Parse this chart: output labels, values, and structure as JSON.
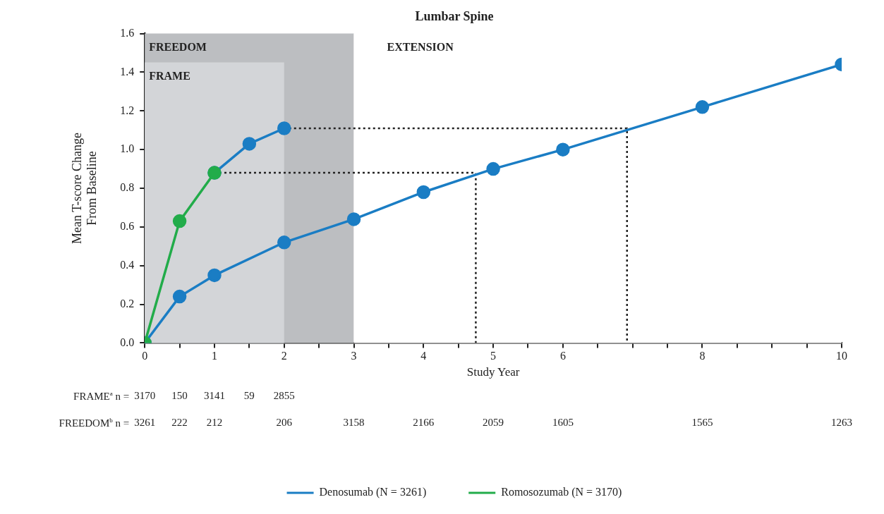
{
  "chart_data": {
    "type": "line",
    "title": "Lumbar Spine",
    "xlabel": "Study Year",
    "ylabel": "Mean T-score Change From Baseline",
    "xlim": [
      0,
      10
    ],
    "ylim": [
      0,
      1.6
    ],
    "xticks": [
      0,
      {
        "value": 0.5,
        "label": null
      },
      1,
      {
        "value": 1.5,
        "label": null
      },
      2,
      {
        "value": 2.5,
        "label": null
      },
      3,
      {
        "value": 3.5,
        "label": null
      },
      4,
      {
        "value": 4.5,
        "label": null
      },
      5,
      {
        "value": 5.5,
        "label": null
      },
      6,
      {
        "value": 6.5,
        "label": null
      },
      {
        "value": 7,
        "label": null
      },
      {
        "value": 7.5,
        "label": null
      },
      8,
      {
        "value": 8.5,
        "label": null
      },
      {
        "value": 9,
        "label": null
      },
      {
        "value": 9.5,
        "label": null
      },
      10
    ],
    "yticks": [
      {
        "value": 0,
        "label": "0.0"
      },
      {
        "value": 0.2,
        "label": "0.2"
      },
      {
        "value": 0.4,
        "label": "0.4"
      },
      {
        "value": 0.6,
        "label": "0.6"
      },
      {
        "value": 0.8,
        "label": "0.8"
      },
      {
        "value": 1,
        "label": "1.0"
      },
      {
        "value": 1.2,
        "label": "1.2"
      },
      {
        "value": 1.4,
        "label": "1.4"
      },
      {
        "value": 1.6,
        "label": "1.6"
      }
    ],
    "bands": [
      {
        "axis": "x",
        "from": 0,
        "to": 3,
        "label": "FREEDOM",
        "color": "#bcbec1"
      },
      {
        "axis": "x",
        "from": 0,
        "to": 2,
        "label": "FRAME",
        "color": "#d3d5d8"
      },
      {
        "axis": "x",
        "from": 3,
        "to": 10,
        "label": "EXTENSION",
        "color": "#ffffff"
      }
    ],
    "series": [
      {
        "x": [
          1,
          4.75,
          4.75
        ],
        "values": [
          0.88,
          0.88,
          0
        ],
        "color": "#222222",
        "line_style": "dotted",
        "marker": "none"
      },
      {
        "x": [
          2,
          6.92,
          6.92
        ],
        "values": [
          1.11,
          1.11,
          0
        ],
        "color": "#222222",
        "line_style": "dotted",
        "marker": "none"
      },
      {
        "name": "Denosumab (N = 3261)",
        "color": "#1a7dc4",
        "x": [
          0,
          0.5,
          1,
          2,
          3,
          4,
          5,
          6,
          8,
          10
        ],
        "values": [
          0,
          0.24,
          0.35,
          0.52,
          0.64,
          0.78,
          0.9,
          1,
          1.22,
          1.44
        ]
      },
      {
        "color": "#1a7dc4",
        "x": [
          1,
          1.5,
          2
        ],
        "values": [
          0.88,
          1.03,
          1.11
        ]
      },
      {
        "name": "Romosozumab (N = 3170)",
        "color": "#22ac4a",
        "x": [
          0,
          0.5,
          1
        ],
        "values": [
          0,
          0.63,
          0.88
        ]
      }
    ],
    "marker": "circle",
    "line_style": "solid",
    "grid": false,
    "legend": "bottom",
    "annotations": [
      "FRAME$^{a}$ n = 3170 150 3141 59 2855",
      "FREEDOM$^{b}$ n = 3261 222 212 206 3158 2166 2059 1605 1565 1263"
    ]
  }
}
